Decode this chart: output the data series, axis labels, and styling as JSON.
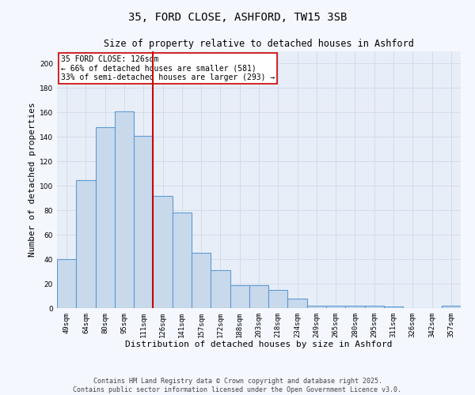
{
  "title": "35, FORD CLOSE, ASHFORD, TW15 3SB",
  "subtitle": "Size of property relative to detached houses in Ashford",
  "xlabel": "Distribution of detached houses by size in Ashford",
  "ylabel": "Number of detached properties",
  "categories": [
    "49sqm",
    "64sqm",
    "80sqm",
    "95sqm",
    "111sqm",
    "126sqm",
    "141sqm",
    "157sqm",
    "172sqm",
    "188sqm",
    "203sqm",
    "218sqm",
    "234sqm",
    "249sqm",
    "265sqm",
    "280sqm",
    "295sqm",
    "311sqm",
    "326sqm",
    "342sqm",
    "357sqm"
  ],
  "values": [
    40,
    105,
    148,
    161,
    141,
    92,
    78,
    45,
    31,
    19,
    19,
    15,
    8,
    2,
    2,
    2,
    2,
    1,
    0,
    0,
    2
  ],
  "bar_color": "#c9d9ec",
  "bar_edge_color": "#5b9bd5",
  "red_line_index": 5,
  "annotation_text": "35 FORD CLOSE: 126sqm\n← 66% of detached houses are smaller (581)\n33% of semi-detached houses are larger (293) →",
  "annotation_box_color": "#ffffff",
  "annotation_box_edge_color": "#cc0000",
  "footer_line1": "Contains HM Land Registry data © Crown copyright and database right 2025.",
  "footer_line2": "Contains public sector information licensed under the Open Government Licence v3.0.",
  "ylim": [
    0,
    210
  ],
  "yticks": [
    0,
    20,
    40,
    60,
    80,
    100,
    120,
    140,
    160,
    180,
    200
  ],
  "grid_color": "#d0d8e8",
  "bg_color": "#e8eef8",
  "fig_bg_color": "#f5f7ff",
  "title_fontsize": 10,
  "subtitle_fontsize": 8.5,
  "tick_fontsize": 6.5,
  "xlabel_fontsize": 8,
  "ylabel_fontsize": 8,
  "annotation_fontsize": 7,
  "footer_fontsize": 6
}
